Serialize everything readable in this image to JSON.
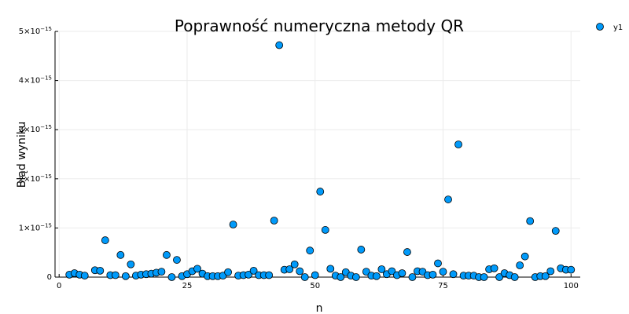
{
  "chart_data": {
    "type": "scatter",
    "title": "Poprawność numeryczna metody QR",
    "xlabel": "n",
    "ylabel": "Błąd wyniku",
    "xlim": [
      -0.8,
      101.8
    ],
    "ylim": [
      0,
      5e-15
    ],
    "x_ticks": [
      0,
      25,
      50,
      75,
      100
    ],
    "y_ticks": [
      0,
      1e-15,
      2e-15,
      3e-15,
      4e-15,
      5e-15
    ],
    "x_tick_labels": [
      "0",
      "25",
      "50",
      "75",
      "100"
    ],
    "y_tick_labels": [
      {
        "mantissa": "0",
        "exp": ""
      },
      {
        "mantissa": "1×10",
        "exp": "−15"
      },
      {
        "mantissa": "2×10",
        "exp": "−15"
      },
      {
        "mantissa": "3×10",
        "exp": "−15"
      },
      {
        "mantissa": "4×10",
        "exp": "−15"
      },
      {
        "mantissa": "5×10",
        "exp": "−15"
      }
    ],
    "grid": true,
    "legend_position": "top-right",
    "marker_color": "#009AFA",
    "series": [
      {
        "name": "y1",
        "x": [
          2,
          3,
          4,
          5,
          7,
          8,
          9,
          10,
          11,
          12,
          13,
          14,
          15,
          16,
          17,
          18,
          19,
          20,
          21,
          22,
          23,
          24,
          25,
          26,
          27,
          28,
          29,
          30,
          31,
          32,
          33,
          34,
          35,
          36,
          37,
          38,
          39,
          40,
          41,
          42,
          43,
          44,
          45,
          46,
          47,
          48,
          49,
          50,
          51,
          52,
          53,
          54,
          55,
          56,
          57,
          58,
          59,
          60,
          61,
          62,
          63,
          64,
          65,
          66,
          67,
          68,
          69,
          70,
          71,
          72,
          73,
          74,
          75,
          76,
          77,
          78,
          79,
          80,
          81,
          82,
          83,
          84,
          85,
          86,
          87,
          88,
          89,
          90,
          91,
          92,
          93,
          94,
          95,
          96,
          97,
          98,
          99,
          100
        ],
        "y": [
          5e-17,
          8e-17,
          5e-17,
          3e-17,
          1.4e-16,
          1.3e-16,
          7.5e-16,
          4e-17,
          4e-17,
          4.5e-16,
          2e-17,
          2.6e-16,
          3e-17,
          5e-17,
          6e-17,
          7e-17,
          9e-17,
          1.1e-16,
          4.5e-16,
          0,
          3.5e-16,
          2e-17,
          6e-17,
          1.2e-16,
          1.7e-16,
          7e-17,
          2e-17,
          2e-17,
          2e-17,
          3e-17,
          1e-16,
          1.07e-15,
          3e-17,
          4e-17,
          5e-17,
          1.3e-16,
          4e-17,
          4e-17,
          4e-17,
          1.15e-15,
          4.72e-15,
          1.5e-16,
          1.6e-16,
          2.6e-16,
          1.2e-16,
          0,
          5.4e-16,
          4e-17,
          1.74e-15,
          9.6e-16,
          1.7e-16,
          3e-17,
          0,
          1e-16,
          3e-17,
          0,
          5.6e-16,
          1.1e-16,
          3e-17,
          2e-17,
          1.6e-16,
          6e-17,
          1.2e-16,
          4e-17,
          8e-17,
          5.1e-16,
          0,
          1.2e-16,
          1.1e-16,
          4e-17,
          5e-17,
          2.8e-16,
          1.1e-16,
          1.58e-15,
          6e-17,
          2.7e-15,
          3e-17,
          3e-17,
          3e-17,
          0,
          0,
          1.6e-16,
          1.8e-16,
          0,
          8e-17,
          4e-17,
          0,
          2.4e-16,
          4.2e-16,
          1.14e-15,
          0,
          2e-17,
          2e-17,
          1.2e-16,
          9.4e-16,
          1.8e-16,
          1.5e-16,
          1.5e-16
        ]
      }
    ]
  }
}
